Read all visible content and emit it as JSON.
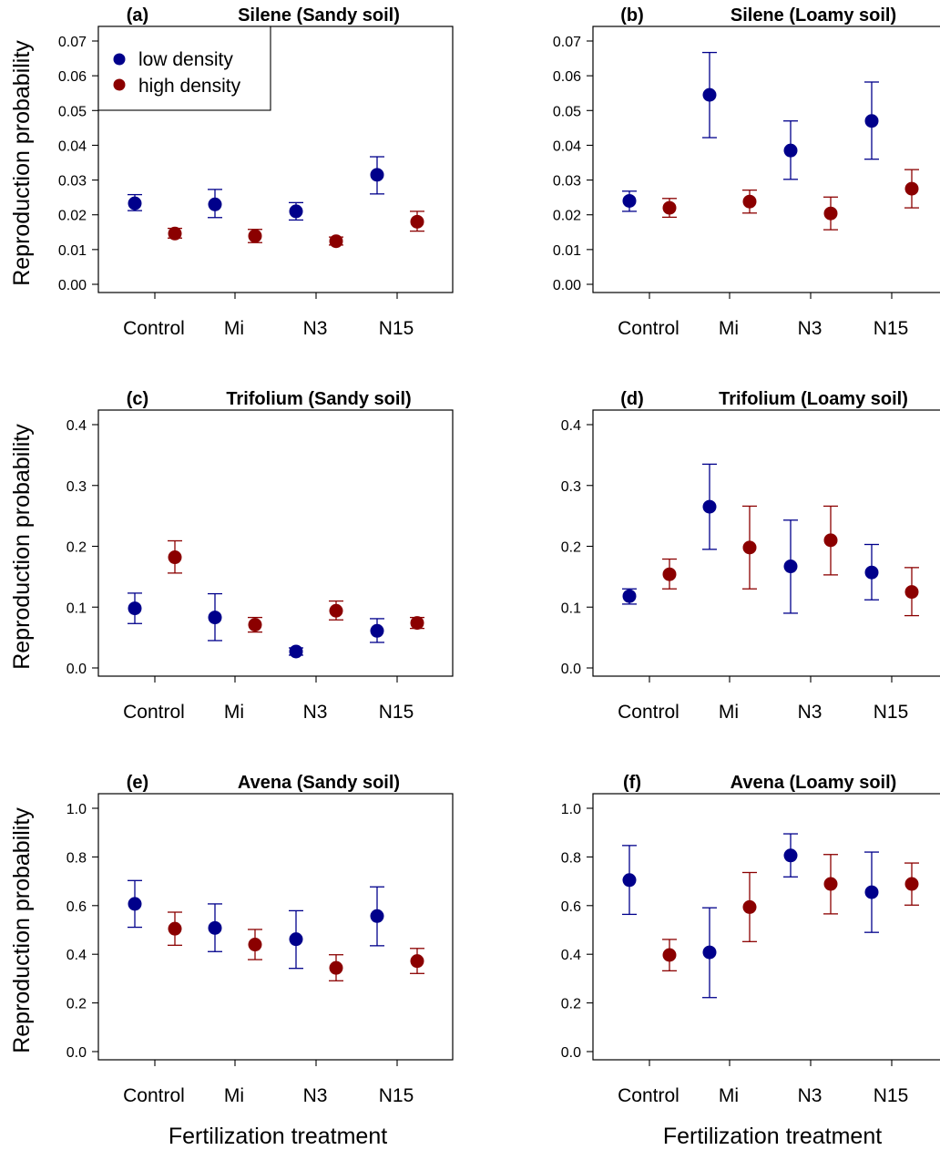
{
  "colors": {
    "low": "#00008b",
    "high": "#8b0000",
    "axis": "#000000"
  },
  "shared": {
    "ylabel": "Reproduction probability",
    "xlabel": "Fertilization treatment",
    "categories": [
      "Control",
      "Mi",
      "N3",
      "N15"
    ]
  },
  "legend": {
    "low": "low density",
    "high": "high density",
    "placement": "top-left of panel (a)"
  },
  "chart_data": [
    {
      "type": "scatter",
      "panel": "(a)",
      "title": "Silene (Sandy soil)",
      "ylim": [
        0,
        0.07
      ],
      "yticks": [
        "0.00",
        "0.01",
        "0.02",
        "0.03",
        "0.04",
        "0.05",
        "0.06",
        "0.07"
      ],
      "series": [
        {
          "name": "low density",
          "values": [
            0.0233,
            0.023,
            0.021,
            0.0315
          ],
          "lower": [
            0.0212,
            0.0192,
            0.0185,
            0.026
          ],
          "upper": [
            0.0258,
            0.0273,
            0.0235,
            0.0367
          ]
        },
        {
          "name": "high density",
          "values": [
            0.0146,
            0.0139,
            0.0124,
            0.018
          ],
          "lower": [
            0.0133,
            0.012,
            0.0113,
            0.0153
          ],
          "upper": [
            0.0161,
            0.0158,
            0.0136,
            0.021
          ]
        }
      ]
    },
    {
      "type": "scatter",
      "panel": "(b)",
      "title": "Silene (Loamy soil)",
      "ylim": [
        0,
        0.07
      ],
      "yticks": [
        "0.00",
        "0.01",
        "0.02",
        "0.03",
        "0.04",
        "0.05",
        "0.06",
        "0.07"
      ],
      "series": [
        {
          "name": "low density",
          "values": [
            0.024,
            0.0545,
            0.0385,
            0.047
          ],
          "lower": [
            0.021,
            0.0422,
            0.0302,
            0.036
          ],
          "upper": [
            0.0268,
            0.0667,
            0.047,
            0.0582
          ]
        },
        {
          "name": "high density",
          "values": [
            0.022,
            0.0238,
            0.0204,
            0.0275
          ],
          "lower": [
            0.0193,
            0.0205,
            0.0157,
            0.022
          ],
          "upper": [
            0.0247,
            0.0271,
            0.0251,
            0.033
          ]
        }
      ]
    },
    {
      "type": "scatter",
      "panel": "(c)",
      "title": "Trifolium (Sandy soil)",
      "ylim": [
        0,
        0.4
      ],
      "yticks": [
        "0.0",
        "0.1",
        "0.2",
        "0.3",
        "0.4"
      ],
      "series": [
        {
          "name": "low density",
          "values": [
            0.098,
            0.083,
            0.027,
            0.061
          ],
          "lower": [
            0.073,
            0.045,
            0.021,
            0.042
          ],
          "upper": [
            0.123,
            0.122,
            0.033,
            0.081
          ]
        },
        {
          "name": "high density",
          "values": [
            0.182,
            0.071,
            0.094,
            0.074
          ],
          "lower": [
            0.156,
            0.059,
            0.079,
            0.065
          ],
          "upper": [
            0.209,
            0.083,
            0.11,
            0.083
          ]
        }
      ]
    },
    {
      "type": "scatter",
      "panel": "(d)",
      "title": "Trifolium (Loamy soil)",
      "ylim": [
        0,
        0.4
      ],
      "yticks": [
        "0.0",
        "0.1",
        "0.2",
        "0.3",
        "0.4"
      ],
      "series": [
        {
          "name": "low density",
          "values": [
            0.118,
            0.265,
            0.167,
            0.157
          ],
          "lower": [
            0.105,
            0.195,
            0.09,
            0.112
          ],
          "upper": [
            0.13,
            0.335,
            0.243,
            0.203
          ]
        },
        {
          "name": "high density",
          "values": [
            0.154,
            0.198,
            0.21,
            0.125
          ],
          "lower": [
            0.13,
            0.13,
            0.153,
            0.086
          ],
          "upper": [
            0.179,
            0.266,
            0.266,
            0.165
          ]
        }
      ]
    },
    {
      "type": "scatter",
      "panel": "(e)",
      "title": "Avena (Sandy soil)",
      "ylim": [
        0,
        1.0
      ],
      "yticks": [
        "0.0",
        "0.2",
        "0.4",
        "0.6",
        "0.8",
        "1.0"
      ],
      "series": [
        {
          "name": "low density",
          "values": [
            0.607,
            0.508,
            0.462,
            0.557
          ],
          "lower": [
            0.511,
            0.411,
            0.342,
            0.435
          ],
          "upper": [
            0.703,
            0.607,
            0.579,
            0.677
          ]
        },
        {
          "name": "high density",
          "values": [
            0.505,
            0.44,
            0.344,
            0.372
          ],
          "lower": [
            0.437,
            0.378,
            0.291,
            0.321
          ],
          "upper": [
            0.573,
            0.502,
            0.398,
            0.424
          ]
        }
      ]
    },
    {
      "type": "scatter",
      "panel": "(f)",
      "title": "Avena (Loamy soil)",
      "ylim": [
        0,
        1.0
      ],
      "yticks": [
        "0.0",
        "0.2",
        "0.4",
        "0.6",
        "0.8",
        "1.0"
      ],
      "series": [
        {
          "name": "low density",
          "values": [
            0.705,
            0.408,
            0.806,
            0.655
          ],
          "lower": [
            0.564,
            0.222,
            0.718,
            0.49
          ],
          "upper": [
            0.847,
            0.591,
            0.895,
            0.82
          ]
        },
        {
          "name": "high density",
          "values": [
            0.397,
            0.594,
            0.689,
            0.689
          ],
          "lower": [
            0.332,
            0.452,
            0.566,
            0.602
          ],
          "upper": [
            0.461,
            0.736,
            0.81,
            0.775
          ]
        }
      ]
    }
  ]
}
